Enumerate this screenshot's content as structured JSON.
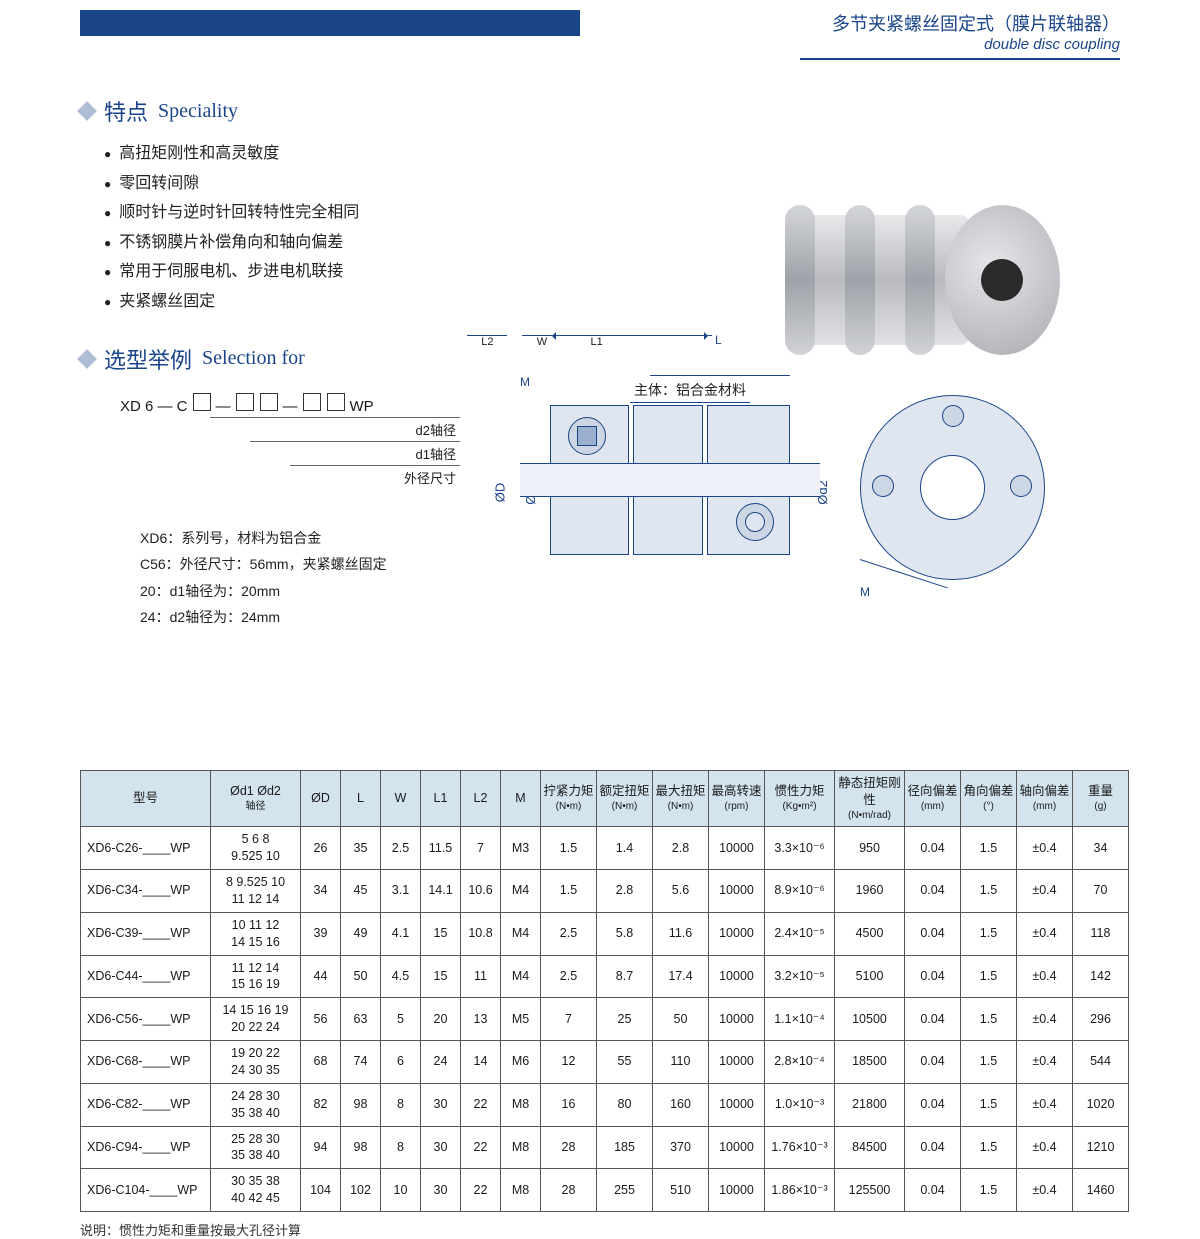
{
  "header": {
    "cn": "多节夹紧螺丝固定式（膜片联轴器）",
    "en": "double disc coupling"
  },
  "speciality": {
    "title_cn": "特点",
    "title_en": "Speciality",
    "items": [
      "高扭矩刚性和高灵敏度",
      "零回转间隙",
      "顺时针与逆时针回转特性完全相同",
      "不锈钢膜片补偿角向和轴向偏差",
      "常用于伺服电机、步进电机联接",
      "夹紧螺丝固定"
    ]
  },
  "callout": "主体：铝合金材料",
  "selection": {
    "title_cn": "选型举例",
    "title_en": "Selection for"
  },
  "modelcode": {
    "prefix": "XD 6 — C",
    "mid": " — ",
    "suffix": "WP",
    "legend": [
      "d2轴径",
      "d1轴径",
      "外径尺寸"
    ]
  },
  "notes": [
    "XD6：系列号，材料为铝合金",
    "C56：外径尺寸：56mm，夹紧螺丝固定",
    "20：d1轴径为：20mm",
    "24：d2轴径为：24mm"
  ],
  "diagram": {
    "M": "M",
    "L": "L",
    "L1": "L1",
    "L2": "L2",
    "W": "W",
    "OD": "ØD",
    "od1": "Ød1",
    "od2": "Ød2"
  },
  "table": {
    "headers": [
      {
        "t": "型号",
        "u": ""
      },
      {
        "t": "Ød1 Ød2",
        "u": "轴径"
      },
      {
        "t": "ØD",
        "u": ""
      },
      {
        "t": "L",
        "u": ""
      },
      {
        "t": "W",
        "u": ""
      },
      {
        "t": "L1",
        "u": ""
      },
      {
        "t": "L2",
        "u": ""
      },
      {
        "t": "M",
        "u": ""
      },
      {
        "t": "拧紧力矩",
        "u": "(N•m)"
      },
      {
        "t": "额定扭矩",
        "u": "(N•m)"
      },
      {
        "t": "最大扭矩",
        "u": "(N•m)"
      },
      {
        "t": "最高转速",
        "u": "(rpm)"
      },
      {
        "t": "惯性力矩",
        "u": "(Kg•m²)"
      },
      {
        "t": "静态扭矩刚性",
        "u": "(N•m/rad)"
      },
      {
        "t": "径向偏差",
        "u": "(mm)"
      },
      {
        "t": "角向偏差",
        "u": "(°)"
      },
      {
        "t": "轴向偏差",
        "u": "(mm)"
      },
      {
        "t": "重量",
        "u": "(g)"
      }
    ],
    "rows": [
      [
        "XD6-C26-____WP",
        "5 6 8\n9.525 10",
        "26",
        "35",
        "2.5",
        "11.5",
        "7",
        "M3",
        "1.5",
        "1.4",
        "2.8",
        "10000",
        "3.3×10⁻⁶",
        "950",
        "0.04",
        "1.5",
        "±0.4",
        "34"
      ],
      [
        "XD6-C34-____WP",
        "8 9.525 10\n11 12 14",
        "34",
        "45",
        "3.1",
        "14.1",
        "10.6",
        "M4",
        "1.5",
        "2.8",
        "5.6",
        "10000",
        "8.9×10⁻⁶",
        "1960",
        "0.04",
        "1.5",
        "±0.4",
        "70"
      ],
      [
        "XD6-C39-____WP",
        "10 11 12\n14 15 16",
        "39",
        "49",
        "4.1",
        "15",
        "10.8",
        "M4",
        "2.5",
        "5.8",
        "11.6",
        "10000",
        "2.4×10⁻⁵",
        "4500",
        "0.04",
        "1.5",
        "±0.4",
        "118"
      ],
      [
        "XD6-C44-____WP",
        "11 12 14\n15 16 19",
        "44",
        "50",
        "4.5",
        "15",
        "11",
        "M4",
        "2.5",
        "8.7",
        "17.4",
        "10000",
        "3.2×10⁻⁵",
        "5100",
        "0.04",
        "1.5",
        "±0.4",
        "142"
      ],
      [
        "XD6-C56-____WP",
        "14 15 16 19\n20 22 24",
        "56",
        "63",
        "5",
        "20",
        "13",
        "M5",
        "7",
        "25",
        "50",
        "10000",
        "1.1×10⁻⁴",
        "10500",
        "0.04",
        "1.5",
        "±0.4",
        "296"
      ],
      [
        "XD6-C68-____WP",
        "19 20 22\n24 30 35",
        "68",
        "74",
        "6",
        "24",
        "14",
        "M6",
        "12",
        "55",
        "110",
        "10000",
        "2.8×10⁻⁴",
        "18500",
        "0.04",
        "1.5",
        "±0.4",
        "544"
      ],
      [
        "XD6-C82-____WP",
        "24 28 30\n35 38 40",
        "82",
        "98",
        "8",
        "30",
        "22",
        "M8",
        "16",
        "80",
        "160",
        "10000",
        "1.0×10⁻³",
        "21800",
        "0.04",
        "1.5",
        "±0.4",
        "1020"
      ],
      [
        "XD6-C94-____WP",
        "25 28 30\n35 38 40",
        "94",
        "98",
        "8",
        "30",
        "22",
        "M8",
        "28",
        "185",
        "370",
        "10000",
        "1.76×10⁻³",
        "84500",
        "0.04",
        "1.5",
        "±0.4",
        "1210"
      ],
      [
        "XD6-C104-____WP",
        "30 35 38\n40 42 45",
        "104",
        "102",
        "10",
        "30",
        "22",
        "M8",
        "28",
        "255",
        "510",
        "10000",
        "1.86×10⁻³",
        "125500",
        "0.04",
        "1.5",
        "±0.4",
        "1460"
      ]
    ],
    "colClasses": [
      "col-model",
      "col-bore",
      "col-sm",
      "col-sm",
      "col-sm",
      "col-sm",
      "col-sm",
      "col-sm",
      "col-md",
      "col-md",
      "col-md",
      "col-md",
      "col-lg",
      "col-lg",
      "col-md",
      "col-md",
      "col-md",
      "col-md"
    ]
  },
  "footnote": "说明：惯性力矩和重量按最大孔径计算"
}
